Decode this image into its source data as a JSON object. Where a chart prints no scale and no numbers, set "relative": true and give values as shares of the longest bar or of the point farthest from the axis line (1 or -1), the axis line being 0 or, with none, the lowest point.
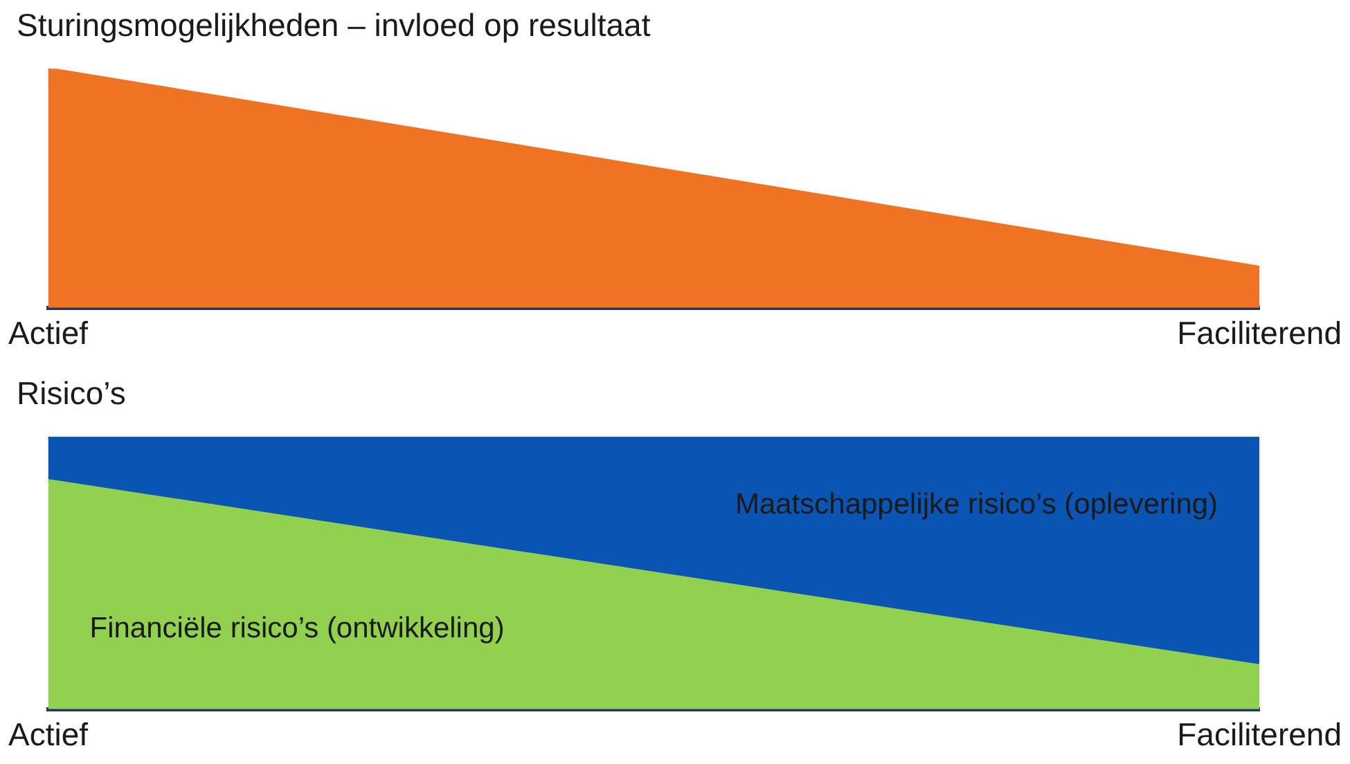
{
  "chart_data": [
    {
      "type": "area",
      "title": "Sturingsmogelijkheden – invloed op resultaat",
      "categories": [
        "Actief",
        "Faciliterend"
      ],
      "relative": true,
      "legend": false,
      "grid": false,
      "series": [
        {
          "color": "#f07323",
          "values": [
            1,
            0.17
          ]
        }
      ]
    },
    {
      "type": "area",
      "title": "Risico’s",
      "categories": [
        "Actief",
        "Faciliterend"
      ],
      "relative": true,
      "stacked": true,
      "legend": false,
      "grid": false,
      "series": [
        {
          "name": "Financiële risico’s (ontwikkeling)",
          "color": "#92d050",
          "values": [
            0.84,
            0.16
          ]
        },
        {
          "name": "Maatschappelijke risico’s (oplevering)",
          "color": "#0a55b4",
          "values": [
            0.16,
            0.84
          ]
        }
      ]
    }
  ]
}
